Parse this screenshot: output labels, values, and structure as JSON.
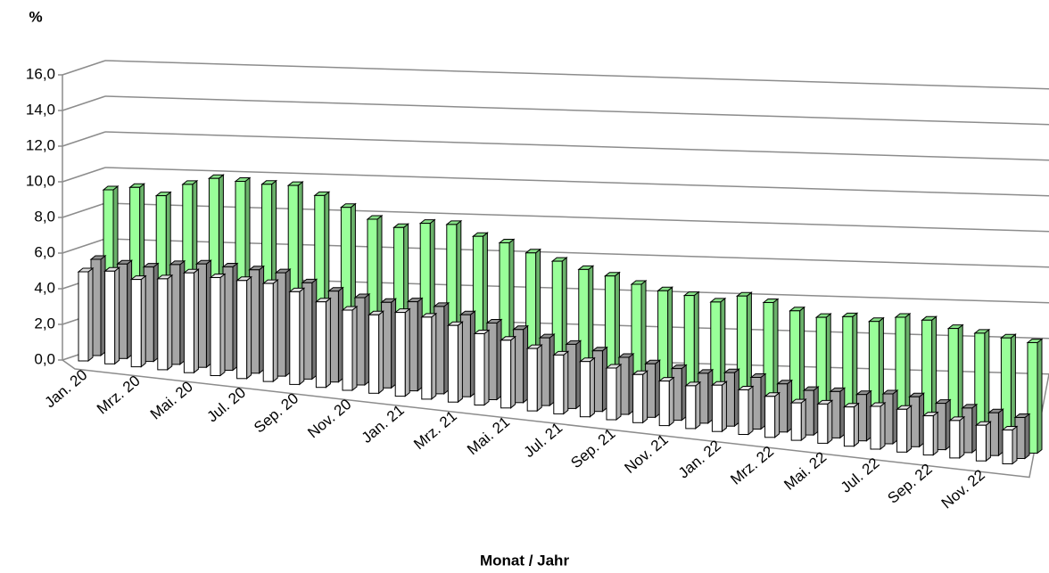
{
  "chart_data": {
    "type": "bar3d",
    "y_label": "%",
    "x_label": "Monat / Jahr",
    "categories": [
      "Jan. 20",
      null,
      "Mrz. 20",
      null,
      "Mai. 20",
      null,
      "Jul. 20",
      null,
      "Sep. 20",
      null,
      "Nov. 20",
      null,
      "Jan. 21",
      null,
      "Mrz. 21",
      null,
      "Mai. 21",
      null,
      "Jul. 21",
      null,
      "Sep. 21",
      null,
      "Nov. 21",
      null,
      "Jan. 22",
      null,
      "Mrz. 22",
      null,
      "Mai. 22",
      null,
      "Jul. 22",
      null,
      "Sep. 22",
      null,
      "Nov. 22",
      null
    ],
    "series": [
      {
        "color": "#ffffff",
        "values": [
          5.0,
          5.2,
          4.9,
          5.1,
          5.6,
          5.5,
          5.5,
          5.5,
          5.2,
          4.8,
          4.5,
          4.4,
          4.7,
          4.6,
          4.3,
          4.0,
          3.8,
          3.5,
          3.3,
          3.1,
          2.9,
          2.7,
          2.5,
          2.4,
          2.6,
          2.5,
          2.3,
          2.1,
          2.2,
          2.2,
          2.4,
          2.4,
          2.2,
          2.1,
          2.0,
          1.9
        ]
      },
      {
        "color": "#a6a6a6",
        "values": [
          5.4,
          5.3,
          5.3,
          5.6,
          5.8,
          5.8,
          5.8,
          5.8,
          5.4,
          5.1,
          4.9,
          4.8,
          5.0,
          4.9,
          4.6,
          4.3,
          4.1,
          3.8,
          3.6,
          3.4,
          3.2,
          3.0,
          2.9,
          2.8,
          3.0,
          2.9,
          2.7,
          2.5,
          2.6,
          2.6,
          2.8,
          2.8,
          2.6,
          2.5,
          2.4,
          2.3
        ]
      },
      {
        "color": "#99ff99",
        "values": [
          9.0,
          9.3,
          9.0,
          9.8,
          10.3,
          10.3,
          10.3,
          10.4,
          10.0,
          9.5,
          9.0,
          8.7,
          9.1,
          9.2,
          8.7,
          8.5,
          8.1,
          7.8,
          7.5,
          7.3,
          7.0,
          6.8,
          6.7,
          6.5,
          7.0,
          6.8,
          6.5,
          6.3,
          6.5,
          6.4,
          6.8,
          6.8,
          6.5,
          6.4,
          6.3,
          6.2
        ]
      }
    ],
    "ylim": [
      0,
      16
    ],
    "yticks": [
      {
        "value": 0,
        "label": "0,0"
      },
      {
        "value": 2,
        "label": "2,0"
      },
      {
        "value": 4,
        "label": "4,0"
      },
      {
        "value": 6,
        "label": "6,0"
      },
      {
        "value": 8,
        "label": "8,0"
      },
      {
        "value": 10,
        "label": "10,0"
      },
      {
        "value": 12,
        "label": "12,0"
      },
      {
        "value": 14,
        "label": "14,0"
      },
      {
        "value": 16,
        "label": "16,0"
      }
    ],
    "grid": true
  }
}
